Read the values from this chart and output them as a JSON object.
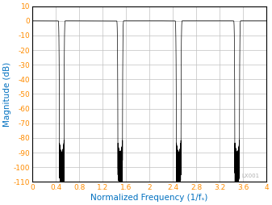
{
  "title": "",
  "xlabel": "Normalized Frequency (1/fₛ)",
  "ylabel": "Magnitude (dB)",
  "xlim": [
    0,
    4
  ],
  "ylim": [
    -110,
    10
  ],
  "xticks": [
    0,
    0.4,
    0.8,
    1.2,
    1.6,
    2.0,
    2.4,
    2.8,
    3.2,
    3.6,
    4.0
  ],
  "xtick_labels": [
    "0",
    "0.4",
    "0.8",
    "1.2",
    "1.6",
    "2",
    "2.4",
    "2.8",
    "3.2",
    "3.6",
    "4"
  ],
  "yticks": [
    10,
    0,
    -10,
    -20,
    -30,
    -40,
    -50,
    -60,
    -70,
    -80,
    -90,
    -100,
    -110
  ],
  "ytick_labels": [
    "10",
    "0",
    "-10",
    "-20",
    "-30",
    "-40",
    "-50",
    "-60",
    "-70",
    "-80",
    "-90",
    "-100",
    "-110"
  ],
  "line_color": "#000000",
  "axis_label_color": "#0070C0",
  "tick_label_color": "#FF8C00",
  "grid_color": "#C0C0C0",
  "background_color": "#FFFFFF",
  "watermark": "LX001"
}
